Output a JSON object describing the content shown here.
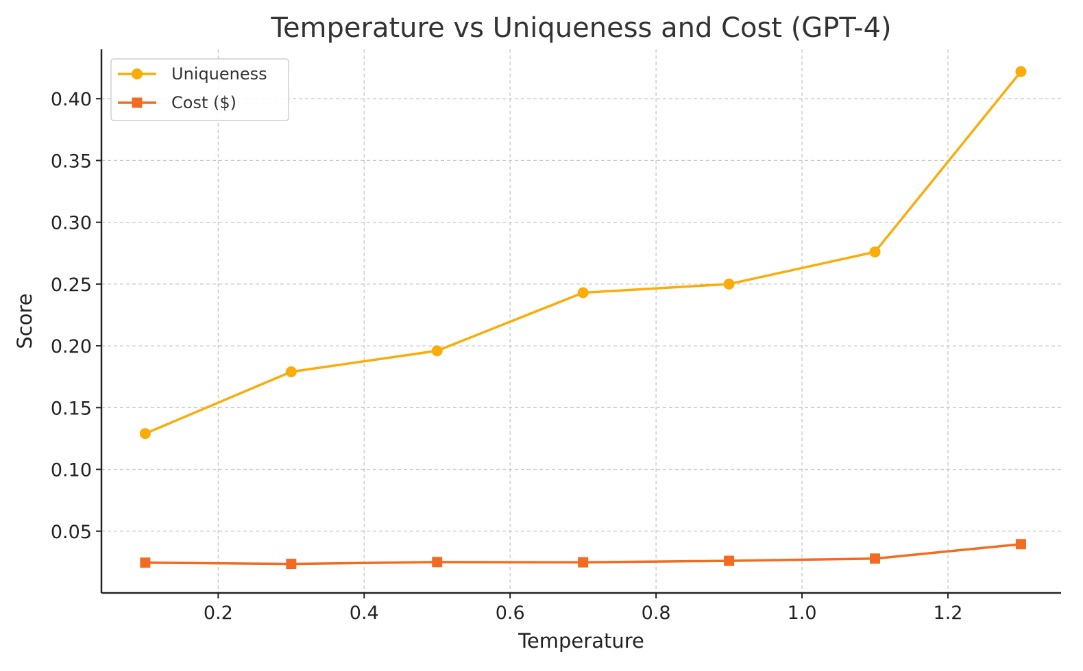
{
  "chart_data": {
    "type": "line",
    "title": "Temperature vs Uniqueness and Cost (GPT-4)",
    "xlabel": "Temperature",
    "ylabel": "Score",
    "x": [
      0.1,
      0.3,
      0.5,
      0.7,
      0.9,
      1.1,
      1.3
    ],
    "xlim": [
      0.04,
      1.355
    ],
    "ylim": [
      0.0,
      0.44
    ],
    "xticks": [
      0.2,
      0.4,
      0.6,
      0.8,
      1.0,
      1.2
    ],
    "xtick_labels": [
      "0.2",
      "0.4",
      "0.6",
      "0.8",
      "1.0",
      "1.2"
    ],
    "yticks": [
      0.05,
      0.1,
      0.15,
      0.2,
      0.25,
      0.3,
      0.35,
      0.4
    ],
    "ytick_labels": [
      "0.05",
      "0.10",
      "0.15",
      "0.20",
      "0.25",
      "0.30",
      "0.35",
      "0.40"
    ],
    "grid": true,
    "legend_position": "top-left",
    "series": [
      {
        "name": "Uniqueness",
        "color": "#F9AC0A",
        "marker": "circle",
        "values": [
          0.129,
          0.179,
          0.196,
          0.243,
          0.25,
          0.276,
          0.422
        ]
      },
      {
        "name": "Cost ($)",
        "color": "#F26B21",
        "marker": "square",
        "values": [
          0.0245,
          0.0235,
          0.025,
          0.0248,
          0.026,
          0.0278,
          0.0395
        ]
      }
    ]
  }
}
